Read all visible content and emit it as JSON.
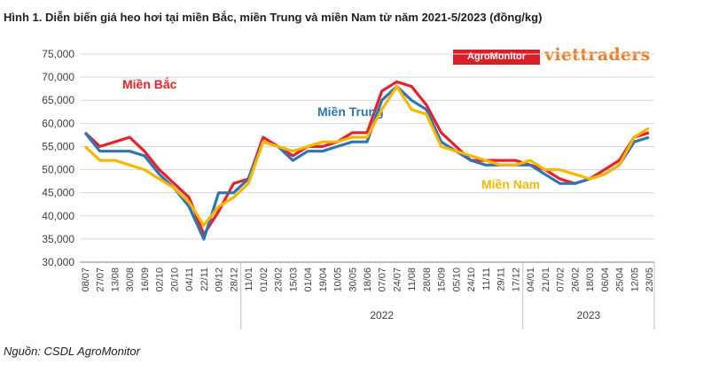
{
  "title": "Hình 1. Diễn biến giá heo hơi tại miền Bắc, miền Trung và miền Nam từ năm 2021-5/2023 (đồng/kg)",
  "source": "Nguồn: CSDL AgroMonitor",
  "logos": {
    "agro": "AgroMonitor",
    "viet": "viettraders"
  },
  "colors": {
    "bac": "#e8212b",
    "trung": "#2f74b5",
    "nam": "#f5b800",
    "grid": "#d9d9d9",
    "axis": "#7f7f7f"
  },
  "chart_data": {
    "type": "line",
    "ylim": [
      30000,
      75000
    ],
    "y_ticks": [
      "30,000",
      "35,000",
      "40,000",
      "45,000",
      "50,000",
      "55,000",
      "60,000",
      "65,000",
      "70,000",
      "75,000"
    ],
    "x_labels": [
      "08/07",
      "27/07",
      "13/08",
      "30/08",
      "16/09",
      "02/10",
      "20/10",
      "04/11",
      "22/11",
      "09/12",
      "28/12",
      "11/01",
      "01/02",
      "23/02",
      "15/03",
      "01/04",
      "19/04",
      "10/05",
      "30/05",
      "18/06",
      "07/07",
      "24/07",
      "11/08",
      "28/08",
      "15/09",
      "05/10",
      "24/10",
      "11/11",
      "29/11",
      "17/12",
      "04/01",
      "21/01",
      "07/02",
      "26/02",
      "18/03",
      "06/04",
      "25/04",
      "12/05",
      "23/05"
    ],
    "x_labels_shown": [
      "08/07",
      "27/07",
      "13/08",
      "30/08",
      "16/09",
      "02/10",
      "20/10",
      "04/11",
      "22/11",
      "09/12",
      "28/12",
      "11/01",
      "01/02",
      "23/02",
      "15/03",
      "01/04",
      "19/04",
      "10/05",
      "30/05",
      "18/06",
      "07/07",
      "24/07",
      "11/08",
      "28/08",
      "15/09",
      "05/10",
      "24/10",
      "11/11",
      "29/11",
      "17/12",
      "04/01",
      "21/01",
      "07/02",
      "26/02",
      "18/03",
      "06/04",
      "25/04",
      "12/05",
      "23/05"
    ],
    "x_label_text": [
      "08/07",
      "27/07",
      "13/08",
      "30/08",
      "16/09",
      "02/10",
      "20/10",
      "04/11",
      "22/11",
      "09/12",
      "28/12",
      "11/01",
      "01/02",
      "23/02",
      "15/03",
      "01/04",
      "19/04",
      "10/05",
      "30/05",
      "18/06",
      "07/07",
      "24/07",
      "11/08",
      "28/08",
      "15/09",
      "05/10",
      "24/10",
      "11/11",
      "29/11",
      "17/12",
      "04/01",
      "21/01",
      "07/02",
      "26/02",
      "18/03",
      "06/04",
      "25/04",
      "12/05",
      "23/05"
    ],
    "years": [
      {
        "label": "2022",
        "from": 11,
        "to": 30
      },
      {
        "label": "2023",
        "from": 30,
        "to": 39
      }
    ],
    "series": [
      {
        "name": "Miền Bắc",
        "color": "#e8212b",
        "values": [
          58000,
          55000,
          56000,
          57000,
          54000,
          50000,
          47000,
          44000,
          36000,
          41000,
          47000,
          48000,
          57000,
          55000,
          53000,
          55000,
          55000,
          56000,
          58000,
          58000,
          67000,
          69000,
          68000,
          64000,
          58000,
          55000,
          52000,
          52000,
          52000,
          52000,
          51000,
          50000,
          48000,
          47000,
          48000,
          50000,
          52000,
          57000,
          58000
        ]
      },
      {
        "name": "Miền Trung",
        "color": "#2f74b5",
        "values": [
          58000,
          54000,
          54000,
          54000,
          53000,
          49000,
          46000,
          42000,
          35000,
          45000,
          45000,
          48000,
          56000,
          55000,
          52000,
          54000,
          54000,
          55000,
          56000,
          56000,
          65000,
          68000,
          65000,
          63000,
          56000,
          54000,
          52000,
          51000,
          51000,
          51000,
          51000,
          49000,
          47000,
          47000,
          48000,
          49000,
          51000,
          56000,
          57000
        ]
      },
      {
        "name": "Miền Nam",
        "color": "#f5b800",
        "values": [
          55000,
          52000,
          52000,
          51000,
          50000,
          48000,
          46000,
          43000,
          38000,
          42000,
          44000,
          47000,
          56000,
          55000,
          54000,
          55000,
          56000,
          56000,
          57000,
          57000,
          63000,
          68000,
          63000,
          62000,
          55000,
          54000,
          53000,
          52000,
          51000,
          51000,
          52000,
          50000,
          50000,
          49000,
          48000,
          49000,
          51000,
          57000,
          59000
        ]
      }
    ]
  }
}
